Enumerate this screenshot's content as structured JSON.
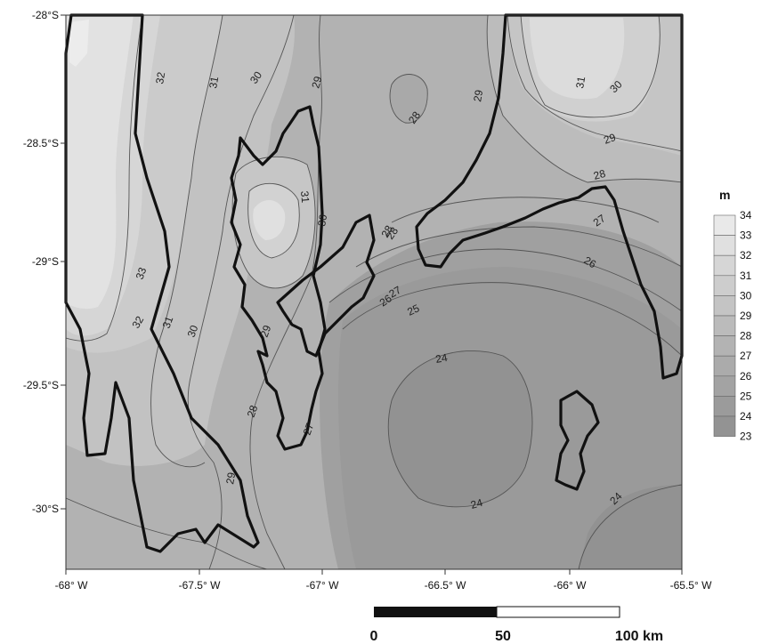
{
  "map": {
    "x_ticks": [
      "-68° W",
      "-67.5° W",
      "-67° W",
      "-66.5° W",
      "-66° W",
      "-65.5° W"
    ],
    "y_ticks": [
      "-28°S",
      "-28.5°S",
      "-29°S",
      "-29.5°S",
      "-30°S"
    ],
    "contour_labels": [
      "32",
      "31",
      "30",
      "29",
      "28",
      "31",
      "29",
      "30",
      "28",
      "33",
      "32",
      "31",
      "30",
      "31",
      "30",
      "29",
      "29",
      "28",
      "27",
      "26",
      "25",
      "24",
      "28",
      "27",
      "26",
      "27",
      "29",
      "28",
      "24",
      "24",
      "28",
      "29",
      "30"
    ]
  },
  "legend": {
    "unit": "m",
    "levels": [
      "34",
      "33",
      "32",
      "31",
      "30",
      "29",
      "28",
      "27",
      "26",
      "25",
      "24",
      "23"
    ],
    "colors": [
      "#e9e9e9",
      "#e0e0e0",
      "#d6d6d6",
      "#cdcdcd",
      "#c4c4c4",
      "#bbbbbb",
      "#b3b3b3",
      "#ababab",
      "#a3a3a3",
      "#9b9b9b",
      "#939393",
      "#8b8b8b"
    ]
  },
  "scale_bar": {
    "labels": [
      "0",
      "50",
      "100 km"
    ]
  }
}
